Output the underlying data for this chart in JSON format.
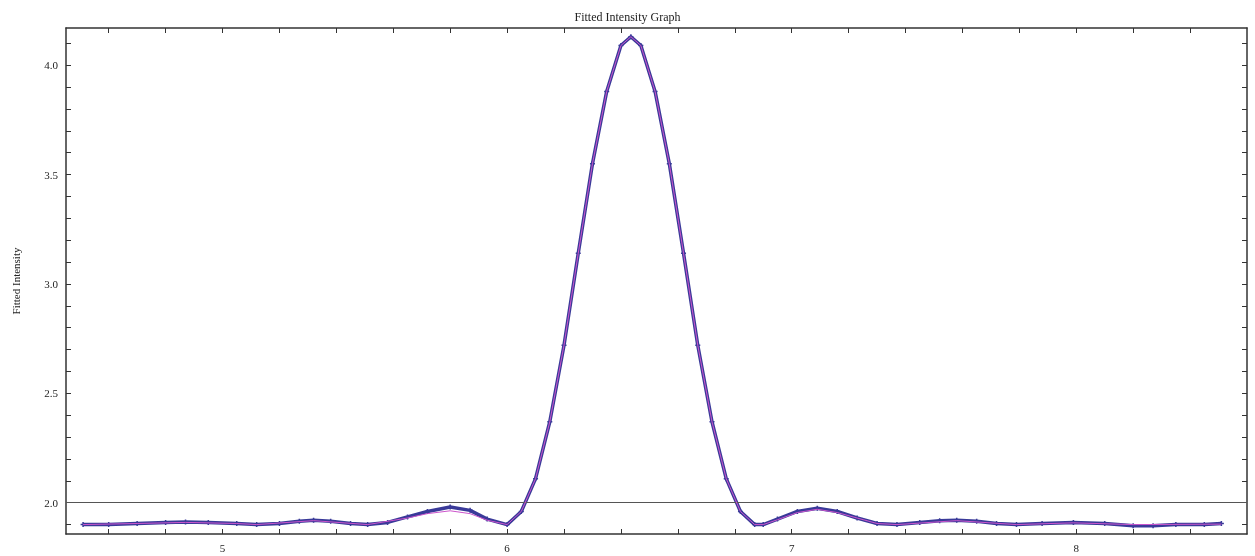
{
  "chart_data": {
    "type": "line",
    "title": "Fitted Intensity Graph",
    "ylabel": "Fitted Intensity",
    "xlim": [
      4.45,
      8.6
    ],
    "ylim": [
      1.857,
      4.17
    ],
    "xticks": [
      {
        "value": 4.6,
        "label": null
      },
      {
        "value": 4.8,
        "label": null
      },
      5,
      {
        "value": 5.2,
        "label": null
      },
      {
        "value": 5.4,
        "label": null
      },
      {
        "value": 5.6,
        "label": null
      },
      {
        "value": 5.8,
        "label": null
      },
      6,
      {
        "value": 6.2,
        "label": null
      },
      {
        "value": 6.4,
        "label": null
      },
      {
        "value": 6.6,
        "label": null
      },
      {
        "value": 6.8,
        "label": null
      },
      7,
      {
        "value": 7.2,
        "label": null
      },
      {
        "value": 7.4,
        "label": null
      },
      {
        "value": 7.6,
        "label": null
      },
      {
        "value": 7.8,
        "label": null
      },
      8,
      {
        "value": 8.2,
        "label": null
      },
      {
        "value": 8.4,
        "label": null
      }
    ],
    "yticks": [
      {
        "value": 1.9,
        "label": null
      },
      {
        "value": 2.0,
        "label": "2.0"
      },
      {
        "value": 2.1,
        "label": null
      },
      {
        "value": 2.2,
        "label": null
      },
      {
        "value": 2.3,
        "label": null
      },
      {
        "value": 2.4,
        "label": null
      },
      2.5,
      {
        "value": 2.6,
        "label": null
      },
      {
        "value": 2.7,
        "label": null
      },
      {
        "value": 2.8,
        "label": null
      },
      {
        "value": 2.9,
        "label": null
      },
      {
        "value": 3.0,
        "label": "3.0"
      },
      {
        "value": 3.1,
        "label": null
      },
      {
        "value": 3.2,
        "label": null
      },
      {
        "value": 3.3,
        "label": null
      },
      {
        "value": 3.4,
        "label": null
      },
      3.5,
      {
        "value": 3.6,
        "label": null
      },
      {
        "value": 3.7,
        "label": null
      },
      {
        "value": 3.8,
        "label": null
      },
      {
        "value": 3.9,
        "label": null
      },
      {
        "value": 4.0,
        "label": "4.0"
      },
      {
        "value": 4.1,
        "label": null
      }
    ],
    "grid": false,
    "ref_lines": [
      {
        "axis": "y",
        "value": 2.0,
        "color": "#555555"
      }
    ],
    "series": [
      {
        "color": "#cc55cc",
        "marker": "none",
        "x": [
          4.51,
          4.7,
          4.87,
          5.05,
          5.12,
          5.32,
          5.51,
          5.65,
          5.72,
          5.8,
          5.87,
          5.93,
          6.0,
          6.05,
          6.1,
          6.15,
          6.2,
          6.25,
          6.3,
          6.35,
          6.4,
          6.435,
          6.47,
          6.52,
          6.57,
          6.62,
          6.67,
          6.72,
          6.77,
          6.82,
          6.87,
          6.9,
          6.95,
          7.02,
          7.09,
          7.16,
          7.23,
          7.3,
          7.37,
          7.58,
          7.79,
          7.99,
          8.2,
          8.51
        ],
        "values": [
          1.9,
          1.905,
          1.91,
          1.905,
          1.9,
          1.918,
          1.9,
          1.93,
          1.95,
          1.963,
          1.95,
          1.92,
          1.9,
          1.96,
          2.11,
          2.37,
          2.72,
          3.14,
          3.55,
          3.88,
          4.09,
          4.13,
          4.09,
          3.88,
          3.55,
          3.14,
          2.72,
          2.37,
          2.11,
          1.96,
          1.9,
          1.9,
          1.922,
          1.955,
          1.97,
          1.955,
          1.93,
          1.905,
          1.9,
          1.918,
          1.9,
          1.908,
          1.9,
          1.902
        ]
      },
      {
        "color": "#3a3a99",
        "marker": "cross",
        "x": [
          4.51,
          4.6,
          4.7,
          4.8,
          4.87,
          4.95,
          5.05,
          5.12,
          5.2,
          5.27,
          5.32,
          5.38,
          5.45,
          5.51,
          5.58,
          5.65,
          5.72,
          5.8,
          5.87,
          5.93,
          6.0,
          6.05,
          6.1,
          6.15,
          6.2,
          6.25,
          6.3,
          6.35,
          6.4,
          6.435,
          6.47,
          6.52,
          6.57,
          6.62,
          6.67,
          6.72,
          6.77,
          6.82,
          6.87,
          6.9,
          6.95,
          7.02,
          7.09,
          7.16,
          7.23,
          7.3,
          7.37,
          7.45,
          7.52,
          7.58,
          7.65,
          7.72,
          7.79,
          7.88,
          7.99,
          8.1,
          8.2,
          8.27,
          8.35,
          8.45,
          8.51
        ],
        "values": [
          1.9,
          1.9,
          1.905,
          1.91,
          1.912,
          1.91,
          1.905,
          1.9,
          1.905,
          1.915,
          1.92,
          1.915,
          1.905,
          1.9,
          1.91,
          1.935,
          1.96,
          1.98,
          1.965,
          1.925,
          1.9,
          1.96,
          2.11,
          2.37,
          2.72,
          3.14,
          3.55,
          3.88,
          4.09,
          4.13,
          4.09,
          3.88,
          3.55,
          3.14,
          2.72,
          2.37,
          2.11,
          1.96,
          1.9,
          1.9,
          1.925,
          1.96,
          1.975,
          1.96,
          1.93,
          1.905,
          1.9,
          1.91,
          1.918,
          1.92,
          1.915,
          1.905,
          1.9,
          1.905,
          1.91,
          1.905,
          1.895,
          1.895,
          1.9,
          1.9,
          1.905
        ]
      }
    ]
  }
}
